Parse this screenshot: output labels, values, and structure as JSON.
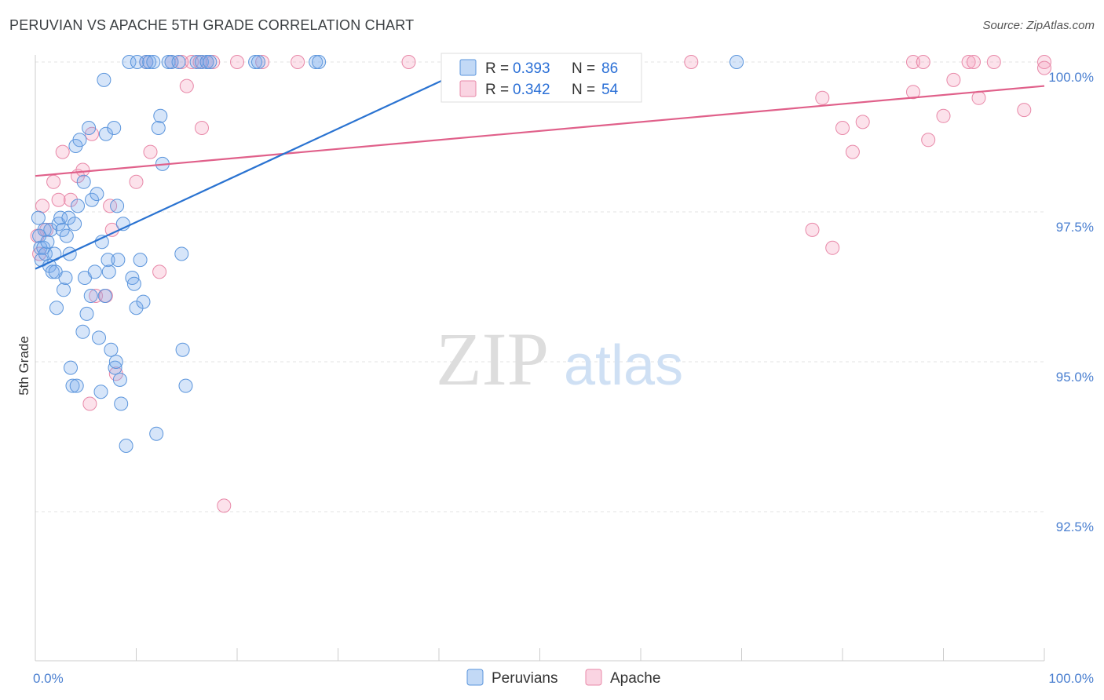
{
  "title": "PERUVIAN VS APACHE 5TH GRADE CORRELATION CHART",
  "source": "Source: ZipAtlas.com",
  "watermark": {
    "zip": "ZIP",
    "atlas": "atlas"
  },
  "colors": {
    "peruvians_fill": "rgba(120,170,235,0.30)",
    "peruvians_stroke": "#5b95dc",
    "peruvians_line": "#2a73d1",
    "apache_fill": "rgba(245,160,190,0.30)",
    "apache_stroke": "#e888a8",
    "apache_line": "#e0608a",
    "grid": "#e3e3e3",
    "tick_text": "#4a7fd0"
  },
  "legend_box": {
    "rows": [
      {
        "r_label": "R = ",
        "r_value": "0.393",
        "n_label": "N = ",
        "n_value": "86"
      },
      {
        "r_label": "R = ",
        "r_value": "0.342",
        "n_label": "N = ",
        "n_value": "54"
      }
    ]
  },
  "chart_data": {
    "type": "scatter",
    "title": "PERUVIAN VS APACHE 5TH GRADE CORRELATION CHART",
    "xlabel": "",
    "ylabel": "5th Grade",
    "xlim": [
      0,
      100
    ],
    "ylim": [
      90.2,
      100.35
    ],
    "x_tick_labels": [
      {
        "value": 0,
        "label": "0.0%"
      },
      {
        "value": 100,
        "label": "100.0%"
      }
    ],
    "y_ticks": [
      {
        "value": 100.0,
        "label": "100.0%"
      },
      {
        "value": 97.5,
        "label": "97.5%"
      },
      {
        "value": 95.0,
        "label": "95.0%"
      },
      {
        "value": 92.5,
        "label": "92.5%"
      }
    ],
    "grid": true,
    "legend_position": "bottom",
    "series": [
      {
        "name": "Peruvians",
        "r": 0.393,
        "n": 86,
        "trendline": {
          "x": [
            0,
            43
          ],
          "y": [
            96.55,
            99.9
          ]
        },
        "points": [
          [
            0.3,
            97.4
          ],
          [
            0.4,
            97.1
          ],
          [
            0.5,
            96.9
          ],
          [
            0.6,
            96.7
          ],
          [
            0.8,
            96.9
          ],
          [
            0.9,
            97.2
          ],
          [
            1.0,
            96.8
          ],
          [
            1.2,
            97.0
          ],
          [
            1.4,
            96.6
          ],
          [
            1.5,
            97.2
          ],
          [
            1.7,
            96.5
          ],
          [
            1.9,
            96.8
          ],
          [
            2.0,
            96.5
          ],
          [
            2.1,
            95.9
          ],
          [
            2.3,
            97.3
          ],
          [
            2.5,
            97.4
          ],
          [
            2.7,
            97.2
          ],
          [
            2.8,
            96.2
          ],
          [
            3.0,
            96.4
          ],
          [
            3.1,
            97.1
          ],
          [
            3.3,
            97.4
          ],
          [
            3.4,
            96.8
          ],
          [
            3.5,
            94.9
          ],
          [
            3.7,
            94.6
          ],
          [
            3.9,
            97.3
          ],
          [
            4.0,
            98.6
          ],
          [
            4.1,
            94.6
          ],
          [
            4.2,
            97.6
          ],
          [
            4.4,
            98.7
          ],
          [
            4.7,
            95.5
          ],
          [
            4.8,
            98.0
          ],
          [
            4.9,
            96.4
          ],
          [
            5.1,
            95.8
          ],
          [
            5.3,
            98.9
          ],
          [
            5.5,
            96.1
          ],
          [
            5.6,
            97.7
          ],
          [
            5.9,
            96.5
          ],
          [
            6.1,
            97.8
          ],
          [
            6.3,
            95.4
          ],
          [
            6.5,
            94.5
          ],
          [
            6.6,
            97.0
          ],
          [
            6.8,
            99.7
          ],
          [
            6.9,
            96.1
          ],
          [
            7.0,
            98.8
          ],
          [
            7.2,
            96.7
          ],
          [
            7.3,
            96.5
          ],
          [
            7.5,
            95.2
          ],
          [
            7.8,
            98.9
          ],
          [
            7.9,
            94.9
          ],
          [
            8.0,
            95.0
          ],
          [
            8.1,
            97.6
          ],
          [
            8.2,
            96.7
          ],
          [
            8.4,
            94.7
          ],
          [
            8.5,
            94.3
          ],
          [
            8.7,
            97.3
          ],
          [
            9.0,
            93.6
          ],
          [
            9.3,
            100.0
          ],
          [
            9.6,
            96.4
          ],
          [
            9.8,
            96.3
          ],
          [
            10.0,
            95.9
          ],
          [
            10.1,
            100.0
          ],
          [
            10.4,
            96.7
          ],
          [
            10.7,
            96.0
          ],
          [
            11.0,
            100.0
          ],
          [
            11.3,
            100.0
          ],
          [
            11.7,
            100.0
          ],
          [
            12.0,
            93.8
          ],
          [
            12.2,
            98.9
          ],
          [
            12.4,
            99.1
          ],
          [
            12.6,
            98.3
          ],
          [
            13.2,
            100.0
          ],
          [
            13.5,
            100.0
          ],
          [
            14.2,
            100.0
          ],
          [
            14.5,
            96.8
          ],
          [
            14.6,
            95.2
          ],
          [
            14.9,
            94.6
          ],
          [
            16.0,
            100.0
          ],
          [
            16.5,
            100.0
          ],
          [
            17.0,
            100.0
          ],
          [
            17.3,
            100.0
          ],
          [
            21.8,
            100.0
          ],
          [
            22.1,
            100.0
          ],
          [
            27.8,
            100.0
          ],
          [
            28.1,
            100.0
          ],
          [
            43.0,
            100.0
          ],
          [
            69.5,
            100.0
          ]
        ]
      },
      {
        "name": "Apache",
        "r": 0.342,
        "n": 54,
        "trendline": {
          "x": [
            0,
            100
          ],
          "y": [
            98.1,
            99.6
          ]
        },
        "points": [
          [
            0.2,
            97.1
          ],
          [
            0.4,
            96.8
          ],
          [
            0.7,
            97.6
          ],
          [
            1.1,
            97.2
          ],
          [
            1.8,
            98.0
          ],
          [
            2.3,
            97.7
          ],
          [
            2.7,
            98.5
          ],
          [
            3.5,
            97.7
          ],
          [
            4.2,
            98.1
          ],
          [
            4.7,
            98.2
          ],
          [
            5.4,
            94.3
          ],
          [
            5.6,
            98.8
          ],
          [
            6.0,
            96.1
          ],
          [
            7.0,
            96.1
          ],
          [
            7.4,
            97.6
          ],
          [
            7.6,
            97.2
          ],
          [
            8.0,
            94.8
          ],
          [
            10.0,
            98.0
          ],
          [
            11.0,
            100.0
          ],
          [
            11.4,
            98.5
          ],
          [
            12.3,
            96.5
          ],
          [
            13.5,
            100.0
          ],
          [
            14.5,
            100.0
          ],
          [
            15.0,
            99.6
          ],
          [
            15.5,
            100.0
          ],
          [
            16.3,
            100.0
          ],
          [
            16.5,
            98.9
          ],
          [
            17.0,
            100.0
          ],
          [
            17.6,
            100.0
          ],
          [
            18.7,
            92.6
          ],
          [
            20.0,
            100.0
          ],
          [
            22.5,
            100.0
          ],
          [
            26.0,
            100.0
          ],
          [
            37.0,
            100.0
          ],
          [
            65.0,
            100.0
          ],
          [
            77.0,
            97.2
          ],
          [
            78.0,
            99.4
          ],
          [
            79.0,
            96.9
          ],
          [
            80.0,
            98.9
          ],
          [
            81.0,
            98.5
          ],
          [
            82.0,
            99.0
          ],
          [
            87.0,
            100.0
          ],
          [
            87.0,
            99.5
          ],
          [
            88.0,
            100.0
          ],
          [
            88.5,
            98.7
          ],
          [
            90.0,
            99.1
          ],
          [
            91.0,
            99.7
          ],
          [
            92.5,
            100.0
          ],
          [
            93.0,
            100.0
          ],
          [
            93.5,
            99.4
          ],
          [
            95.0,
            100.0
          ],
          [
            98.0,
            99.2
          ],
          [
            100.0,
            100.0
          ],
          [
            100.0,
            99.9
          ]
        ]
      }
    ]
  }
}
